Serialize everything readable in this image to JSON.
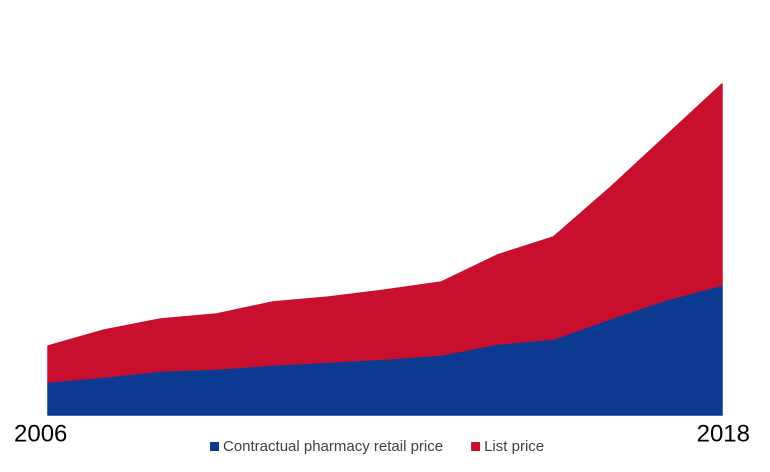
{
  "chart_data": {
    "type": "area",
    "stacked": true,
    "categories": [
      "2006",
      null,
      null,
      null,
      null,
      null,
      null,
      null,
      null,
      null,
      null,
      null,
      "2018"
    ],
    "series": [
      {
        "name": "Contractual pharmacy retail price",
        "color": "#0d3a91",
        "values": [
          33,
          38,
          44,
          46,
          50,
          53,
          56,
          60,
          71,
          76,
          96,
          115,
          130
        ]
      },
      {
        "name": "List price",
        "color": "#c8102e",
        "values": [
          36,
          47,
          52,
          55,
          63,
          65,
          69,
          73,
          89,
          102,
          131,
          164,
          201
        ]
      }
    ],
    "ylim": [
      0,
      360
    ],
    "grid": false,
    "legend": "bottom"
  }
}
